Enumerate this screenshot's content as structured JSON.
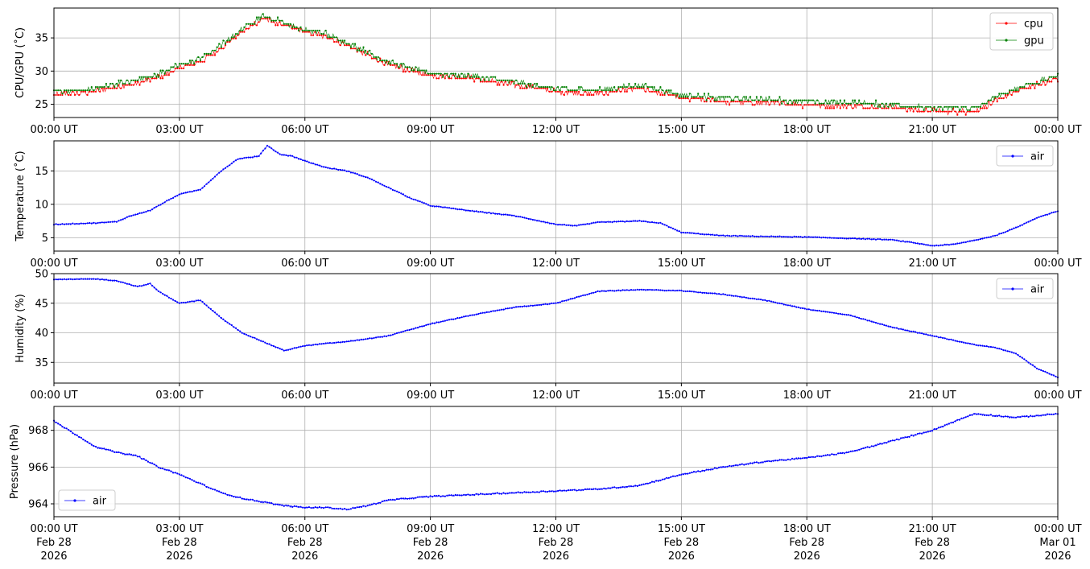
{
  "x_tick_labels": [
    "00:00 UT",
    "03:00 UT",
    "06:00 UT",
    "09:00 UT",
    "12:00 UT",
    "15:00 UT",
    "18:00 UT",
    "21:00 UT",
    "00:00 UT"
  ],
  "x_tick_dates": [
    [
      "Feb 28",
      "2026"
    ],
    [
      "Feb 28",
      "2026"
    ],
    [
      "Feb 28",
      "2026"
    ],
    [
      "Feb 28",
      "2026"
    ],
    [
      "Feb 28",
      "2026"
    ],
    [
      "Feb 28",
      "2026"
    ],
    [
      "Feb 28",
      "2026"
    ],
    [
      "Feb 28",
      "2026"
    ],
    [
      "Mar 01",
      "2026"
    ]
  ],
  "chart_data": [
    {
      "type": "line",
      "ylabel": "CPU/GPU (˚C)",
      "x_unit": "hours UT",
      "xlim": [
        0,
        24
      ],
      "ylim": [
        23,
        39.5
      ],
      "yticks": [
        25,
        30,
        35
      ],
      "grid": true,
      "legend_placement": "top-right",
      "series": [
        {
          "name": "cpu",
          "color": "#ff0000",
          "step": 1,
          "x": [
            0,
            1,
            1.3,
            1.8,
            2.4,
            2.7,
            3,
            3.5,
            4,
            4.5,
            5,
            5.5,
            6,
            6.5,
            7,
            7.5,
            8,
            8.5,
            9,
            10,
            11,
            12,
            13,
            14,
            15,
            16,
            17,
            18,
            19,
            20,
            21,
            22,
            23,
            24
          ],
          "y": [
            26.5,
            27,
            27.5,
            28,
            29,
            29.7,
            30.5,
            31.5,
            33.5,
            36,
            38,
            37,
            36,
            35.3,
            34,
            32.5,
            31,
            30.2,
            29.5,
            29,
            28,
            27,
            26.7,
            27.5,
            26,
            25.5,
            25.3,
            25,
            24.8,
            24.6,
            24,
            24,
            27,
            29
          ]
        },
        {
          "name": "gpu",
          "color": "#008000",
          "step": 1,
          "x": [
            0,
            1,
            1.3,
            1.8,
            2.4,
            2.7,
            3,
            3.5,
            4,
            4.5,
            5,
            5.5,
            6,
            6.5,
            7,
            7.5,
            8,
            8.5,
            9,
            10,
            11,
            12,
            13,
            14,
            15,
            16,
            17,
            18,
            19,
            20,
            21,
            22,
            23,
            24
          ],
          "y": [
            26.8,
            27.2,
            27.8,
            28.3,
            29.2,
            30,
            30.8,
            31.8,
            33.8,
            36.3,
            38.2,
            37.2,
            36.1,
            35.5,
            34.2,
            32.7,
            31.2,
            30.4,
            29.6,
            29.2,
            28.2,
            27.2,
            27,
            27.8,
            26.3,
            25.8,
            25.6,
            25.3,
            25.1,
            24.9,
            24.3,
            24.3,
            27.3,
            29.2
          ]
        }
      ]
    },
    {
      "type": "line",
      "ylabel": "Temperature (˚C)",
      "x_unit": "hours UT",
      "xlim": [
        0,
        24
      ],
      "ylim": [
        3,
        19.5
      ],
      "yticks": [
        5,
        10,
        15
      ],
      "grid": true,
      "legend_placement": "top-right",
      "series": [
        {
          "name": "air",
          "color": "#0000ff",
          "step": 1,
          "x": [
            0,
            1,
            1.5,
            1.8,
            2.3,
            2.7,
            3,
            3.5,
            4,
            4.4,
            4.9,
            5.1,
            5.4,
            5.7,
            6,
            6.5,
            7,
            7.5,
            8,
            8.5,
            9,
            10,
            11,
            12,
            12.5,
            13,
            14,
            14.5,
            15,
            16,
            17,
            18,
            19,
            20,
            20.5,
            21,
            21.5,
            22,
            22.5,
            23,
            23.5,
            24
          ],
          "y": [
            7,
            7.2,
            7.4,
            8.2,
            9.1,
            10.5,
            11.5,
            12.2,
            15,
            16.8,
            17.2,
            18.8,
            17.5,
            17.2,
            16.5,
            15.5,
            15,
            14,
            12.5,
            11,
            9.8,
            9,
            8.3,
            7,
            6.8,
            7.3,
            7.5,
            7.2,
            5.8,
            5.3,
            5.2,
            5.1,
            4.9,
            4.7,
            4.3,
            3.8,
            4,
            4.6,
            5.3,
            6.5,
            8,
            9
          ]
        }
      ]
    },
    {
      "type": "line",
      "ylabel": "Humidity (%)",
      "x_unit": "hours UT",
      "xlim": [
        0,
        24
      ],
      "ylim": [
        31.5,
        50
      ],
      "yticks": [
        35,
        40,
        45,
        50
      ],
      "grid": true,
      "legend_placement": "top-right",
      "series": [
        {
          "name": "air",
          "color": "#0000ff",
          "step": 1,
          "x": [
            0,
            1,
            1.5,
            2,
            2.3,
            2.5,
            3,
            3.5,
            4,
            4.5,
            5,
            5.5,
            6,
            6.5,
            7,
            8,
            9,
            10,
            11,
            12,
            12.5,
            13,
            14,
            15,
            16,
            17,
            18,
            19,
            20,
            21,
            22,
            22.5,
            23,
            23.5,
            24
          ],
          "y": [
            49,
            49.1,
            48.8,
            47.8,
            48.3,
            47,
            45,
            45.5,
            42.5,
            40,
            38.5,
            37,
            37.8,
            38.2,
            38.5,
            39.5,
            41.5,
            43,
            44.3,
            45,
            46,
            47,
            47.3,
            47.1,
            46.5,
            45.5,
            44,
            43,
            41,
            39.5,
            38,
            37.5,
            36.5,
            34,
            32.5
          ]
        }
      ]
    },
    {
      "type": "line",
      "ylabel": "Pressure (hPa)",
      "x_unit": "hours UT",
      "xlim": [
        0,
        24
      ],
      "ylim": [
        963.3,
        969.3
      ],
      "yticks": [
        964,
        966,
        968
      ],
      "grid": true,
      "legend_placement": "bottom-left",
      "series": [
        {
          "name": "air",
          "color": "#0000ff",
          "step": 1,
          "x": [
            0,
            0.5,
            1,
            1.5,
            2,
            2.5,
            3,
            3.5,
            4,
            4.5,
            5,
            5.5,
            6,
            6.5,
            7,
            7.5,
            8,
            9,
            10,
            11,
            12,
            13,
            14,
            15,
            16,
            17,
            18,
            19,
            20,
            21,
            22,
            22.5,
            23,
            23.5,
            24
          ],
          "y": [
            968.5,
            967.8,
            967.1,
            966.8,
            966.6,
            966,
            965.6,
            965.1,
            964.6,
            964.3,
            964.1,
            963.9,
            963.8,
            963.8,
            963.7,
            963.9,
            964.2,
            964.4,
            964.5,
            964.6,
            964.7,
            964.8,
            965,
            965.6,
            966,
            966.3,
            966.5,
            966.8,
            967.4,
            968,
            968.9,
            968.8,
            968.7,
            968.8,
            968.9
          ]
        }
      ]
    }
  ]
}
